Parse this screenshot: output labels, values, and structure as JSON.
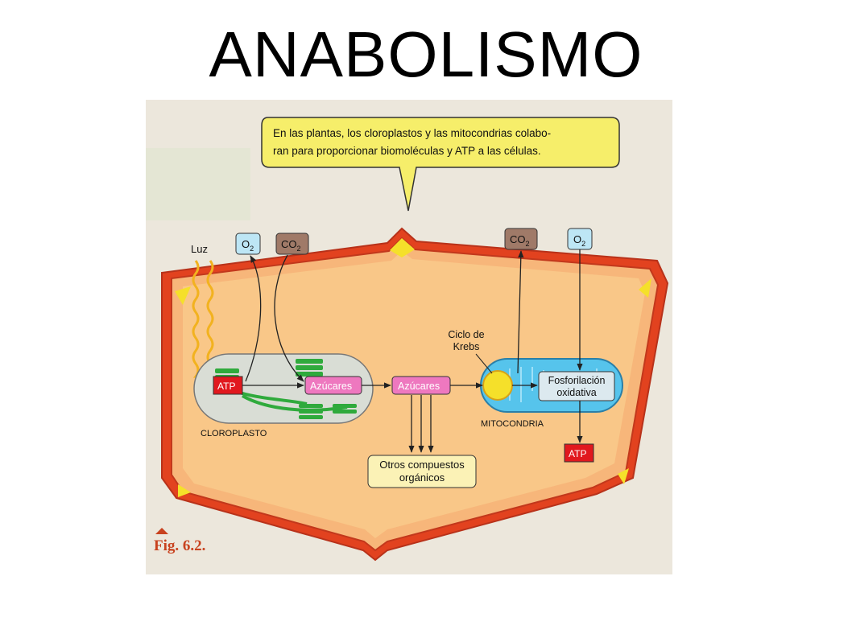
{
  "slide": {
    "title": "ANABOLISMO"
  },
  "figure": {
    "callout_line1": "En las plantas, los cloroplastos y las mitocondrias colabo-",
    "callout_line2": "ran para proporcionar biomoléculas y ATP a las células.",
    "luz": "Luz",
    "o2_left": "O",
    "o2_left_sub": "2",
    "co2_left": "CO",
    "co2_left_sub": "2",
    "co2_right": "CO",
    "co2_right_sub": "2",
    "o2_right": "O",
    "o2_right_sub": "2",
    "atp_chloroplast": "ATP",
    "azucares_chloroplast": "Azúcares",
    "azucares_cytoplasm": "Azúcares",
    "ciclo_line1": "Ciclo de",
    "ciclo_line2": "Krebs",
    "fosforilacion_line1": "Fosforilación",
    "fosforilacion_line2": "oxidativa",
    "atp_mito": "ATP",
    "otros_line1": "Otros compuestos",
    "otros_line2": "orgánicos",
    "cloroplasto_label": "CLOROPLASTO",
    "mitocondria_label": "MITOCONDRIA",
    "fig_label": "Fig. 6.2."
  },
  "colors": {
    "cell_wall": "#e2421f",
    "cytoplasm": "#f9c788",
    "callout": "#f6ee6a",
    "atp": "#e1181e",
    "azucares": "#ee78bf",
    "thylakoid": "#2faa3c",
    "o2_box": "#bde6f5",
    "co2_box": "#a07a68",
    "mitochondria": "#56c4ec",
    "otros_box": "#fbf2b6",
    "fig_label": "#c8421f"
  }
}
